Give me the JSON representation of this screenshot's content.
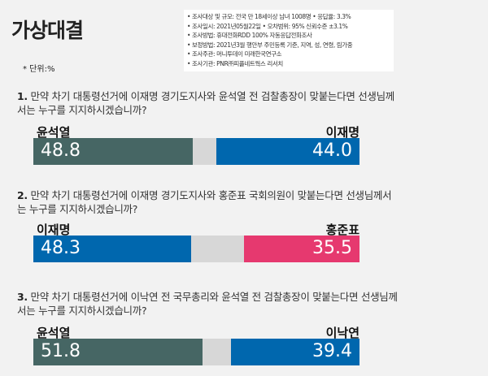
{
  "header": {
    "title": "가상대결",
    "unit": "* 단위:%"
  },
  "info": [
    "• 조사대상 및 규모: 전국 만 18세이상 남녀 1008명  • 응답율: 3.3%",
    "• 조사일시: 2021년05월22일  • 오차범위: 95% 신뢰수준 ±3.1%",
    "• 조사방법: 휴대전화RDD 100% 자동응답전화조사",
    "• 보정방법: 2021년3월 행안부 주민등록 기준, 지역, 성, 연령, 림가중",
    "• 조사주관: 머니투데이 미래한국연구소",
    "• 조사기관: PNR㈜피플네트웍스 리서치"
  ],
  "chart_data": [
    {
      "type": "bar",
      "number": "1.",
      "question": "만약 차기 대통령선거에 이재명 경기도지사와 윤석열 전 검찰총장이 맞붙는다면 선생님께서는 누구를 지지하시겠습니까?",
      "left": {
        "name": "윤석열",
        "value": 48.8,
        "color": "#466664"
      },
      "right": {
        "name": "이재명",
        "value": 44.0,
        "value_label": "44.0",
        "color": "#0067ae"
      },
      "xlim": [
        0,
        100
      ]
    },
    {
      "type": "bar",
      "number": "2.",
      "question": "만약 차기 대통령선거에 이재명 경기도지사와 홍준표 국회의원이 맞붙는다면 선생님께서는 누구를 지지하시겠습니까?",
      "left": {
        "name": "이재명",
        "value": 48.3,
        "color": "#0067ae"
      },
      "right": {
        "name": "홍준표",
        "value": 35.5,
        "value_label": "35.5",
        "color": "#e6396f"
      },
      "xlim": [
        0,
        100
      ]
    },
    {
      "type": "bar",
      "number": "3.",
      "question": "만약 차기 대통령선거에 이낙연 전 국무총리와 윤석열 전 검찰총장이 맞붙는다면 선생님께서는 누구를 지지하시겠습니까?",
      "left": {
        "name": "윤석열",
        "value": 51.8,
        "color": "#466664"
      },
      "right": {
        "name": "이낙연",
        "value": 39.4,
        "value_label": "39.4",
        "color": "#0067ae"
      },
      "xlim": [
        0,
        100
      ]
    }
  ]
}
